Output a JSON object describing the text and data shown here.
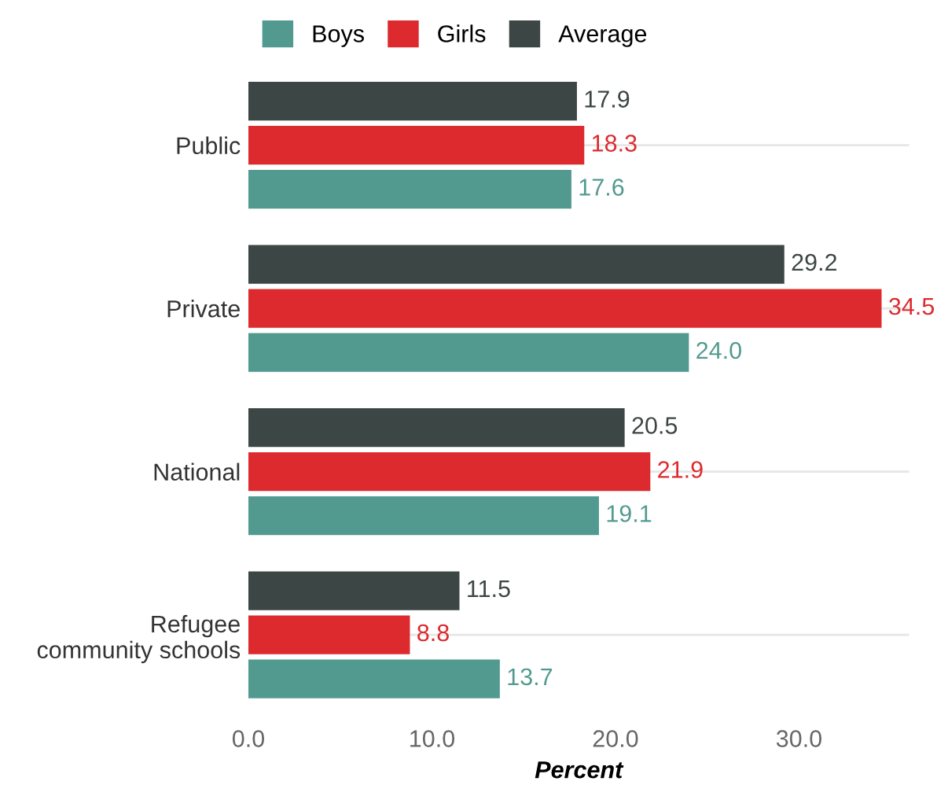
{
  "chart_data": {
    "type": "bar",
    "orientation": "horizontal",
    "xlabel": "Percent",
    "categories": [
      "Public",
      "Private",
      "National",
      "Refugee\ncommunity schools"
    ],
    "series": [
      {
        "name": "Boys",
        "color": "#529a8f",
        "values": [
          17.6,
          24.0,
          19.1,
          13.7
        ]
      },
      {
        "name": "Girls",
        "color": "#dc2a2e",
        "values": [
          18.3,
          34.5,
          21.9,
          8.8
        ]
      },
      {
        "name": "Average",
        "color": "#3c4644",
        "values": [
          17.9,
          29.2,
          20.5,
          11.5
        ]
      }
    ],
    "value_labels": [
      [
        "17.6",
        "24.0",
        "19.1",
        "13.7"
      ],
      [
        "18.3",
        "34.5",
        "21.9",
        "8.8"
      ],
      [
        "17.9",
        "29.2",
        "20.5",
        "11.5"
      ]
    ],
    "xlim": [
      0,
      36
    ],
    "xticks": [
      {
        "value": 0,
        "label": "0.0"
      },
      {
        "value": 10,
        "label": "10.0"
      },
      {
        "value": 20,
        "label": "20.0"
      },
      {
        "value": 30,
        "label": "30.0"
      }
    ],
    "grid": "y",
    "legend": "top left"
  }
}
